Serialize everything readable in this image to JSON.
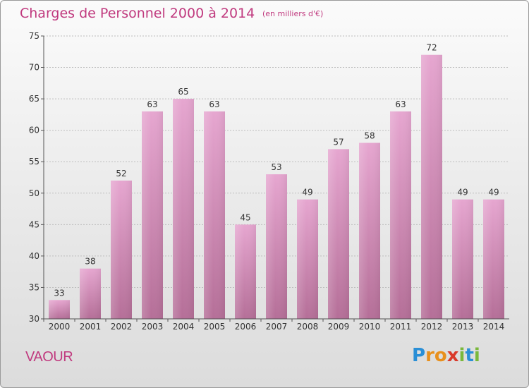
{
  "header": {
    "title": "Charges de Personnel 2000 à 2014",
    "subtitle": "(en milliers d'€)"
  },
  "footer": {
    "commune": "VAOUR",
    "logo_text": "Proxiti"
  },
  "colors": {
    "title": "#c0397e",
    "bar_top": "#e6a6d0",
    "bar_bottom": "#b56f98",
    "axis": "#555555",
    "grid": "#bdbdbd"
  },
  "chart_data": {
    "type": "bar",
    "categories": [
      "2000",
      "2001",
      "2002",
      "2003",
      "2004",
      "2005",
      "2006",
      "2007",
      "2008",
      "2009",
      "2010",
      "2011",
      "2012",
      "2013",
      "2014"
    ],
    "values": [
      33,
      38,
      52,
      63,
      65,
      63,
      45,
      53,
      49,
      57,
      58,
      63,
      72,
      49,
      49
    ],
    "ylim": [
      30,
      75
    ],
    "yticks": [
      30,
      35,
      40,
      45,
      50,
      55,
      60,
      65,
      70,
      75
    ],
    "xlabel": "",
    "ylabel": "",
    "grid": true
  }
}
